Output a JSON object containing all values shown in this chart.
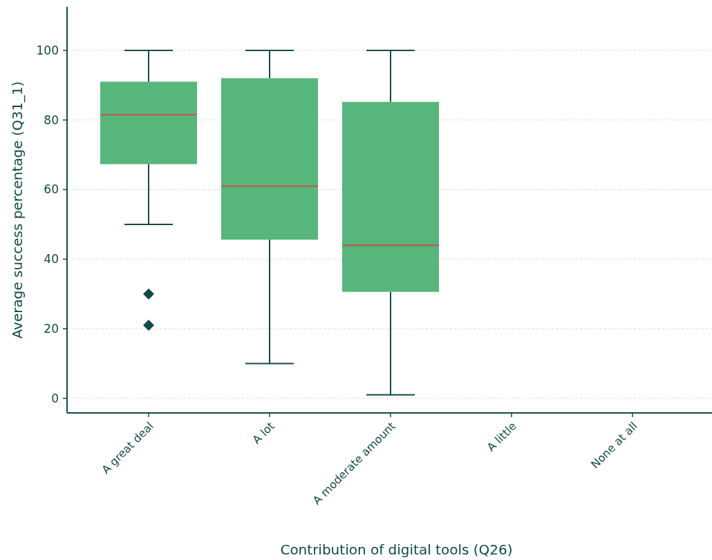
{
  "chart_data": {
    "type": "box",
    "xlabel": "Contribution of digital tools (Q26)",
    "ylabel": "Average success percentage (Q31_1)",
    "categories": [
      "A great deal",
      "A lot",
      "A moderate amount",
      "A little",
      "None at all"
    ],
    "boxes": [
      {
        "low": 50,
        "q1": 67.3,
        "median": 81.5,
        "q3": 91,
        "high": 100,
        "outliers": [
          30,
          21
        ]
      },
      {
        "low": 10,
        "q1": 45.6,
        "median": 61,
        "q3": 92,
        "high": 100
      },
      {
        "low": 1,
        "q1": 30.6,
        "median": 44,
        "q3": 85.2,
        "high": 100
      },
      null,
      null
    ],
    "color": "#57b67c",
    "ylim": [
      -4.2,
      112.5
    ],
    "yticks": [
      0,
      20,
      40,
      60,
      80,
      100
    ],
    "grid": "y",
    "marker": "diamond"
  }
}
